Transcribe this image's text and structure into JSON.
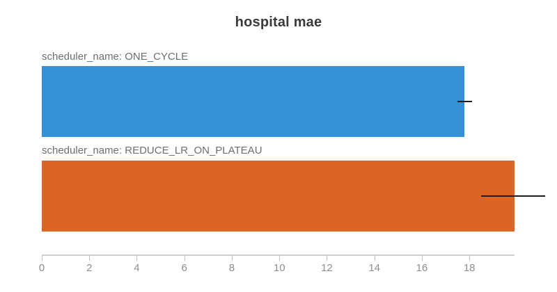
{
  "title": "hospital mae",
  "chart_data": {
    "type": "bar",
    "orientation": "horizontal",
    "title": "hospital mae",
    "categories": [
      "scheduler_name: ONE_CYCLE",
      "scheduler_name: REDUCE_LR_ON_PLATEAU"
    ],
    "values": [
      17.8,
      19.9
    ],
    "error_ranges": [
      [
        17.5,
        18.1
      ],
      [
        18.5,
        21.2
      ]
    ],
    "colors": [
      "#3590d5",
      "#da6527"
    ],
    "error_bar_color": "#1c1c1c",
    "xlim": [
      0,
      19.9
    ],
    "x_ticks": [
      0,
      2,
      4,
      6,
      8,
      10,
      12,
      14,
      16,
      18
    ],
    "grid": false,
    "legend": "none"
  }
}
